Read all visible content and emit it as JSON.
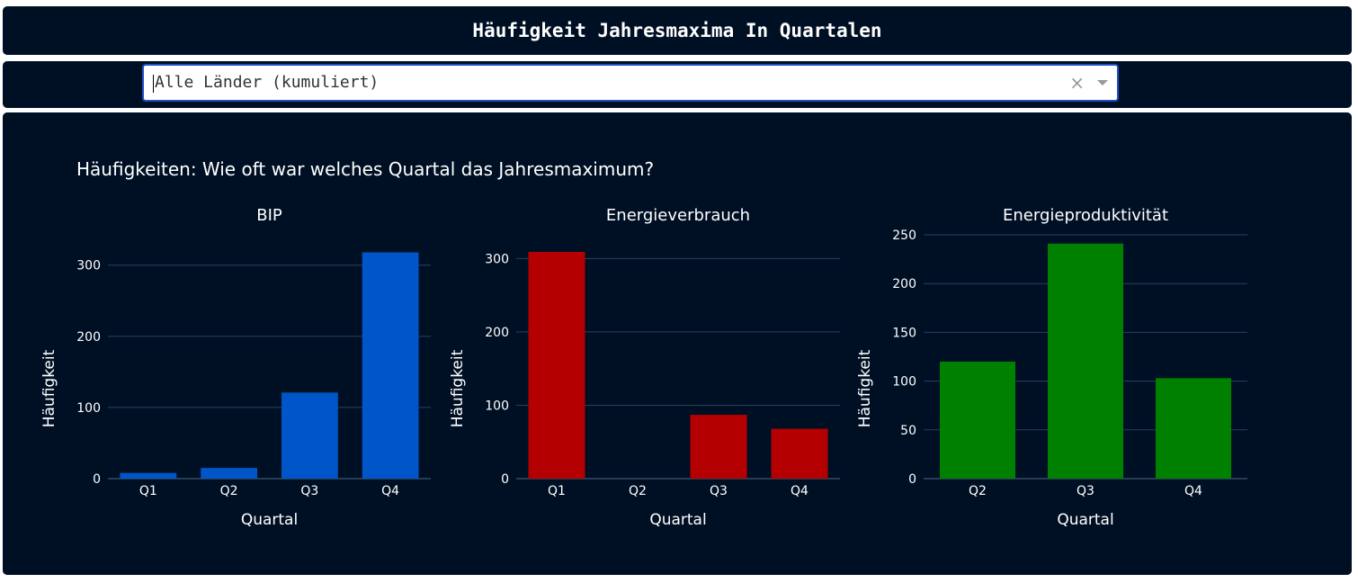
{
  "header": {
    "title": "Häufigkeit Jahresmaxima In Quartalen"
  },
  "dropdown": {
    "selected": "Alle Länder (kumuliert)",
    "clear_symbol": "×"
  },
  "figure": {
    "title": "Häufigkeiten: Wie oft war welches Quartal das Jahresmaximum?"
  },
  "colors": {
    "background": "#001024",
    "bip": "#0055c8",
    "energieverbrauch": "#b40000",
    "energieproduktivitaet": "#008000"
  },
  "chart_data": [
    {
      "type": "bar",
      "title": "BIP",
      "xlabel": "Quartal",
      "ylabel": "Häufigkeit",
      "categories": [
        "Q1",
        "Q2",
        "Q3",
        "Q4"
      ],
      "values": [
        8,
        15,
        121,
        318
      ],
      "ylim": [
        0,
        330
      ],
      "yticks": [
        0,
        100,
        200,
        300
      ],
      "color": "#0055c8",
      "grid": true
    },
    {
      "type": "bar",
      "title": "Energieverbrauch",
      "xlabel": "Quartal",
      "ylabel": "Häufigkeit",
      "categories": [
        "Q1",
        "Q2",
        "Q3",
        "Q4"
      ],
      "values": [
        309,
        0,
        87,
        68
      ],
      "ylim": [
        0,
        320
      ],
      "yticks": [
        0,
        100,
        200,
        300
      ],
      "color": "#b40000",
      "grid": true
    },
    {
      "type": "bar",
      "title": "Energieproduktivität",
      "xlabel": "Quartal",
      "ylabel": "Häufigkeit",
      "categories": [
        "Q2",
        "Q3",
        "Q4"
      ],
      "values": [
        120,
        241,
        103
      ],
      "ylim": [
        0,
        250
      ],
      "yticks": [
        0,
        50,
        100,
        150,
        200,
        250
      ],
      "color": "#008000",
      "grid": true
    }
  ]
}
